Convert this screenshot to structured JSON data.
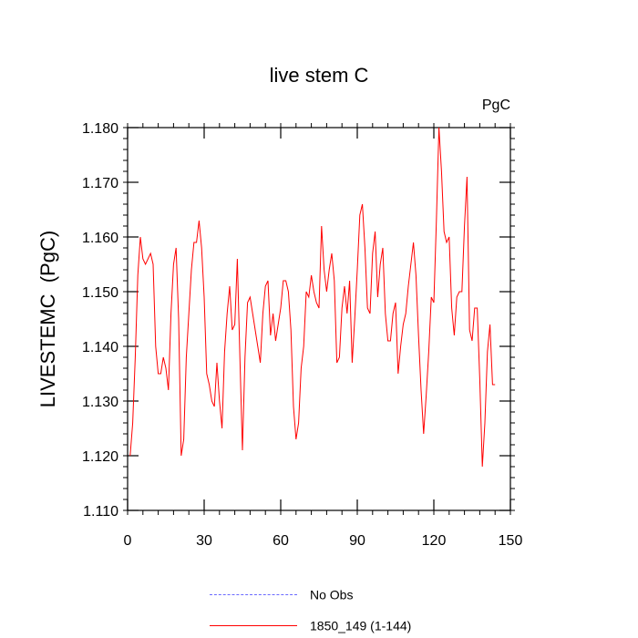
{
  "chart_data": {
    "type": "line",
    "title": "live stem C",
    "units_label": "PgC",
    "ylabel": "LIVESTEMC  (PgC)",
    "xlabel": "",
    "xlim": [
      0,
      150
    ],
    "ylim": [
      1.11,
      1.18
    ],
    "xticks": [
      0,
      30,
      60,
      90,
      120,
      150
    ],
    "xtick_labels": [
      "0",
      "30",
      "60",
      "90",
      "120",
      "150"
    ],
    "yticks": [
      1.11,
      1.12,
      1.13,
      1.14,
      1.15,
      1.16,
      1.17,
      1.18
    ],
    "ytick_labels": [
      "1.110",
      "1.120",
      "1.130",
      "1.140",
      "1.150",
      "1.160",
      "1.170",
      "1.180"
    ],
    "grid": false,
    "legend_position": "bottom",
    "series": [
      {
        "name": "No Obs",
        "color": "#6a6aff",
        "dash": true,
        "x": [],
        "values": []
      },
      {
        "name": "1850_149 (1-144)",
        "color": "#ff0000",
        "dash": false,
        "x": [
          1,
          2,
          3,
          4,
          5,
          6,
          7,
          8,
          9,
          10,
          11,
          12,
          13,
          14,
          15,
          16,
          17,
          18,
          19,
          20,
          21,
          22,
          23,
          24,
          25,
          26,
          27,
          28,
          29,
          30,
          31,
          32,
          33,
          34,
          35,
          36,
          37,
          38,
          39,
          40,
          41,
          42,
          43,
          44,
          45,
          46,
          47,
          48,
          49,
          50,
          51,
          52,
          53,
          54,
          55,
          56,
          57,
          58,
          59,
          60,
          61,
          62,
          63,
          64,
          65,
          66,
          67,
          68,
          69,
          70,
          71,
          72,
          73,
          74,
          75,
          76,
          77,
          78,
          79,
          80,
          81,
          82,
          83,
          84,
          85,
          86,
          87,
          88,
          89,
          90,
          91,
          92,
          93,
          94,
          95,
          96,
          97,
          98,
          99,
          100,
          101,
          102,
          103,
          104,
          105,
          106,
          107,
          108,
          109,
          110,
          111,
          112,
          113,
          114,
          115,
          116,
          117,
          118,
          119,
          120,
          121,
          122,
          123,
          124,
          125,
          126,
          127,
          128,
          129,
          130,
          131,
          132,
          133,
          134,
          135,
          136,
          137,
          138,
          139,
          140,
          141,
          142,
          143,
          144
        ],
        "values": [
          1.12,
          1.126,
          1.138,
          1.153,
          1.16,
          1.156,
          1.155,
          1.156,
          1.157,
          1.155,
          1.14,
          1.135,
          1.135,
          1.138,
          1.136,
          1.132,
          1.146,
          1.155,
          1.158,
          1.145,
          1.12,
          1.123,
          1.138,
          1.146,
          1.154,
          1.159,
          1.159,
          1.163,
          1.158,
          1.149,
          1.135,
          1.133,
          1.13,
          1.129,
          1.137,
          1.13,
          1.125,
          1.139,
          1.146,
          1.151,
          1.143,
          1.144,
          1.156,
          1.138,
          1.121,
          1.138,
          1.148,
          1.149,
          1.146,
          1.143,
          1.14,
          1.137,
          1.146,
          1.151,
          1.152,
          1.142,
          1.146,
          1.141,
          1.144,
          1.147,
          1.152,
          1.152,
          1.15,
          1.143,
          1.129,
          1.123,
          1.126,
          1.136,
          1.14,
          1.15,
          1.149,
          1.153,
          1.15,
          1.148,
          1.147,
          1.162,
          1.154,
          1.15,
          1.154,
          1.157,
          1.152,
          1.137,
          1.138,
          1.147,
          1.151,
          1.146,
          1.152,
          1.137,
          1.145,
          1.154,
          1.164,
          1.166,
          1.158,
          1.147,
          1.146,
          1.157,
          1.161,
          1.149,
          1.155,
          1.158,
          1.146,
          1.141,
          1.141,
          1.146,
          1.148,
          1.135,
          1.14,
          1.144,
          1.146,
          1.151,
          1.155,
          1.159,
          1.153,
          1.142,
          1.132,
          1.124,
          1.131,
          1.139,
          1.149,
          1.148,
          1.163,
          1.18,
          1.172,
          1.161,
          1.159,
          1.16,
          1.147,
          1.142,
          1.149,
          1.15,
          1.15,
          1.162,
          1.171,
          1.143,
          1.141,
          1.147,
          1.147,
          1.134,
          1.118,
          1.126,
          1.139,
          1.144,
          1.133,
          1.133
        ]
      }
    ]
  }
}
